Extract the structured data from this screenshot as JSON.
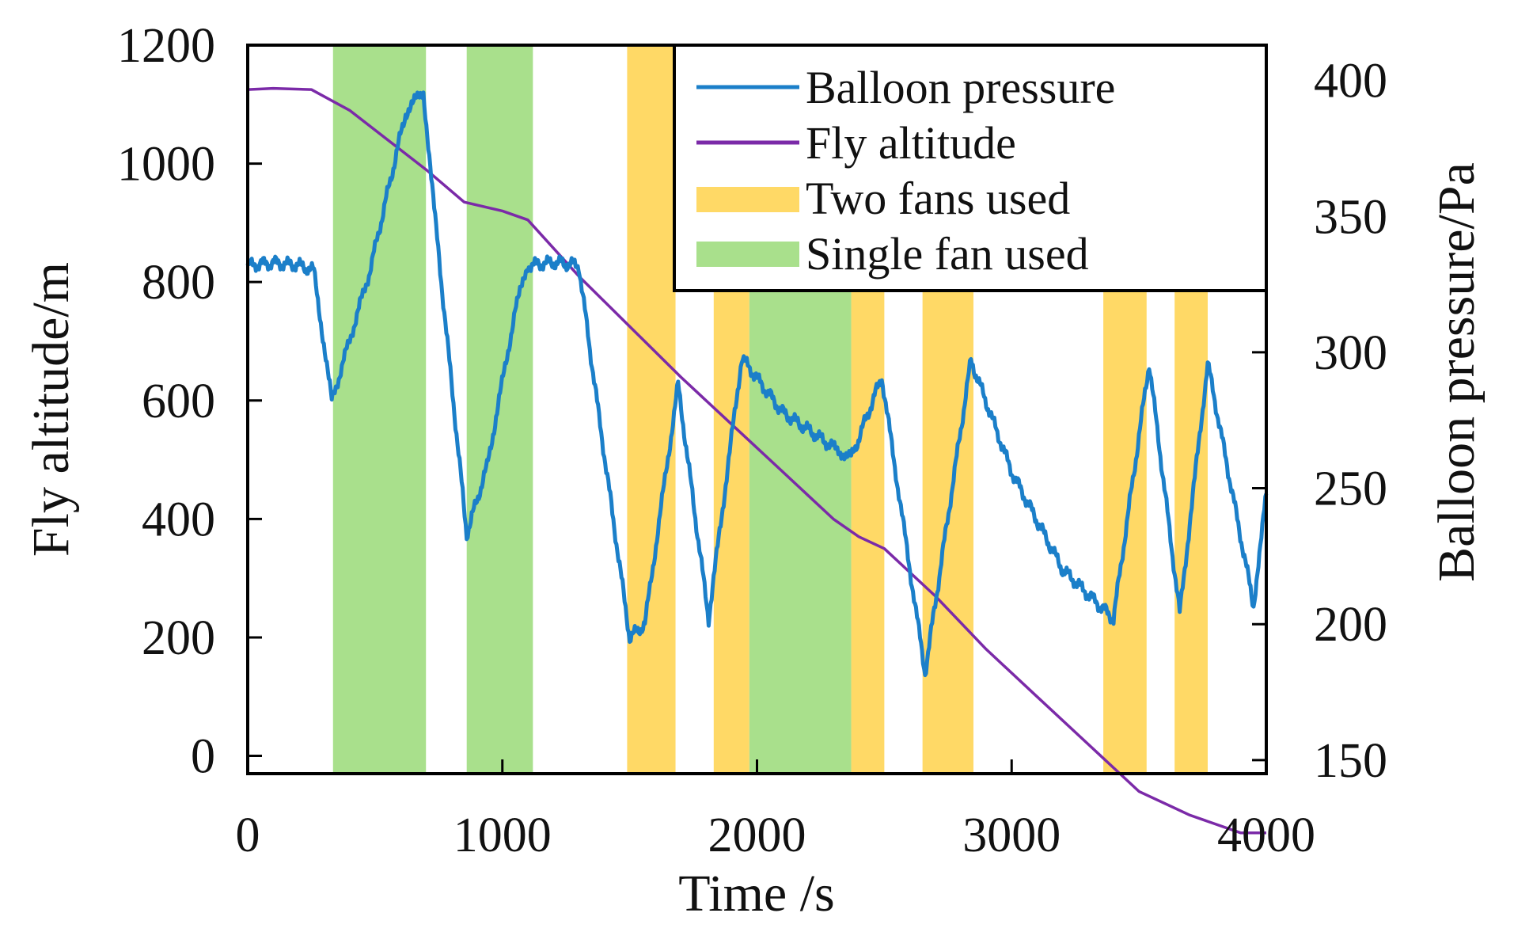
{
  "chart_data": {
    "type": "line",
    "xlabel": "Time /s",
    "ylabel_left": "Fly altitude/m",
    "ylabel_right": "Balloon pressure/Pa",
    "xlim": [
      0,
      4000
    ],
    "ylim_left": [
      -30,
      1200
    ],
    "ylim_right": [
      145,
      413
    ],
    "x_ticks": [
      0,
      1000,
      2000,
      3000,
      4000
    ],
    "y_left_ticks": [
      0,
      200,
      400,
      600,
      800,
      1000,
      1200
    ],
    "y_right_ticks": [
      150,
      200,
      250,
      300,
      350,
      400
    ],
    "colors": {
      "pressure": "#1b7fc9",
      "altitude": "#7b2aa8",
      "two_fans": "#ffd966",
      "single_fan": "#a9e08c"
    },
    "legend": {
      "location": "top-right",
      "entries": [
        "Balloon pressure",
        "Fly altitude",
        "Two fans used",
        "Single fan used"
      ]
    },
    "shaded_regions": [
      {
        "label": "Single fan used",
        "start": 335,
        "end": 700
      },
      {
        "label": "Single fan used",
        "start": 860,
        "end": 1120
      },
      {
        "label": "Two fans used",
        "start": 1490,
        "end": 1680
      },
      {
        "label": "Two fans used",
        "start": 1830,
        "end": 1970
      },
      {
        "label": "Single fan used",
        "start": 1970,
        "end": 2370
      },
      {
        "label": "Two fans used",
        "start": 2370,
        "end": 2500
      },
      {
        "label": "Two fans used",
        "start": 2650,
        "end": 2850
      },
      {
        "label": "Two fans used",
        "start": 3360,
        "end": 3530
      },
      {
        "label": "Two fans used",
        "start": 3640,
        "end": 3770
      }
    ],
    "series": [
      {
        "name": "Fly altitude",
        "axis": "left",
        "x": [
          0,
          100,
          250,
          400,
          550,
          700,
          850,
          1000,
          1100,
          1300,
          1500,
          1700,
          1900,
          2100,
          2300,
          2400,
          2500,
          2700,
          2900,
          3100,
          3300,
          3500,
          3700,
          3900,
          4000
        ],
        "y": [
          1125,
          1127,
          1125,
          1090,
          1040,
          990,
          935,
          920,
          905,
          810,
          725,
          640,
          560,
          480,
          400,
          370,
          350,
          270,
          180,
          100,
          20,
          -60,
          -100,
          -130,
          -130
        ]
      },
      {
        "name": "Balloon pressure",
        "axis": "right",
        "x": [
          0,
          100,
          200,
          260,
          330,
          480,
          620,
          690,
          740,
          860,
          940,
          1050,
          1100,
          1200,
          1300,
          1380,
          1500,
          1560,
          1690,
          1810,
          1940,
          2100,
          2300,
          2370,
          2490,
          2660,
          2840,
          3000,
          3200,
          3400,
          3540,
          3660,
          3770,
          3950,
          4000
        ],
        "y": [
          332,
          333,
          332,
          330,
          282,
          330,
          388,
          396,
          345,
          233,
          258,
          315,
          332,
          333,
          332,
          276,
          195,
          200,
          288,
          202,
          298,
          278,
          265,
          261,
          291,
          182,
          297,
          256,
          220,
          202,
          296,
          204,
          296,
          207,
          248
        ]
      }
    ]
  }
}
